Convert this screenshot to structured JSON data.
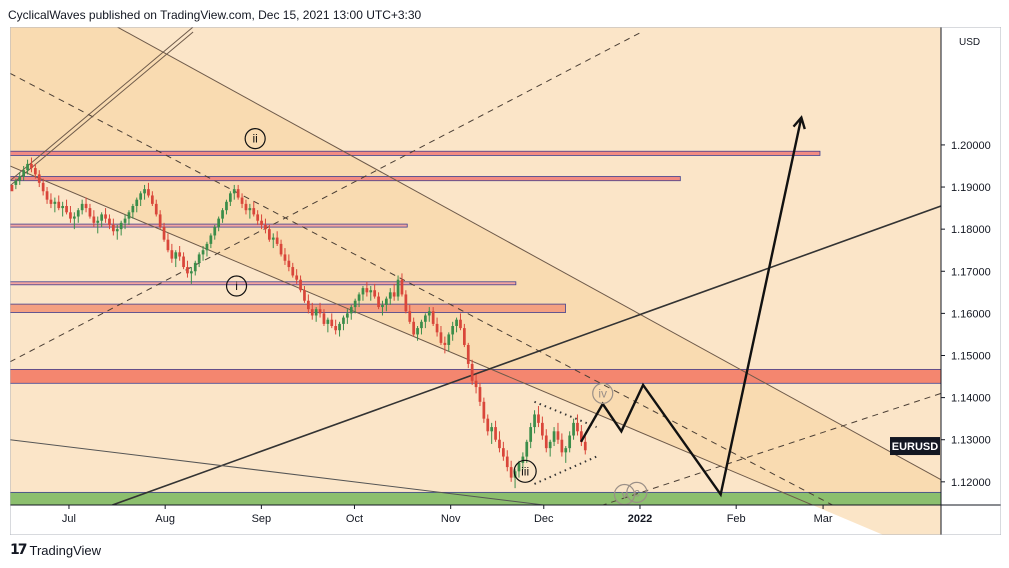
{
  "header": {
    "text": "CyclicalWaves published on TradingView.com, Dec 15, 2021 13:00 UTC+3:30"
  },
  "footer": {
    "logo": "17",
    "brand": "TradingView"
  },
  "chart_data": {
    "type": "candlestick",
    "symbol_badge": "EURUSD",
    "currency_label": "USD",
    "price_levels": [
      "1.20000",
      "1.19000",
      "1.18000",
      "1.17000",
      "1.16000",
      "1.15000",
      "1.14000",
      "1.13000",
      "1.12000"
    ],
    "y_values": [
      1.2,
      1.19,
      1.18,
      1.17,
      1.16,
      1.15,
      1.14,
      1.13,
      1.12
    ],
    "ylim": [
      1.1145,
      1.228
    ],
    "time_ticks": [
      "Jul",
      "Aug",
      "Sep",
      "Oct",
      "Nov",
      "Dec",
      "2022",
      "Feb",
      "Mar"
    ],
    "x_dates": [
      "2021-07-01",
      "2021-08-01",
      "2021-09-01",
      "2021-10-01",
      "2021-11-01",
      "2021-12-01",
      "2022-01-01",
      "2022-02-01",
      "2022-03-01"
    ],
    "xlim": [
      "2021-06-12",
      "2022-04-08"
    ],
    "zones": [
      {
        "name": "resistance-1.198",
        "from": "2021-06-12",
        "to": "2022-02-28",
        "low": 1.1975,
        "high": 1.1985,
        "color": "#f28b82"
      },
      {
        "name": "resistance-1.192",
        "from": "2021-06-12",
        "to": "2022-01-14",
        "low": 1.1915,
        "high": 1.1925,
        "color": "#f28b82"
      },
      {
        "name": "level-1.181",
        "from": "2021-06-12",
        "to": "2021-10-18",
        "low": 1.1807,
        "high": 1.1812,
        "color": "#f4a6a0"
      },
      {
        "name": "level-1.167",
        "from": "2021-06-12",
        "to": "2021-11-22",
        "low": 1.1668,
        "high": 1.1675,
        "color": "#f4a6a0"
      },
      {
        "name": "zone-1.161",
        "from": "2021-06-12",
        "to": "2021-12-08",
        "low": 1.1602,
        "high": 1.1622,
        "color": "#f4a081"
      },
      {
        "name": "zone-1.145",
        "from": "2021-06-12",
        "to": "2022-04-08",
        "low": 1.1434,
        "high": 1.1467,
        "color": "#f4866f"
      },
      {
        "name": "support-1.117",
        "from": "2021-06-12",
        "to": "2022-04-08",
        "low": 1.1145,
        "high": 1.1175,
        "color": "#8cbf6e"
      }
    ],
    "candles": [
      [
        1.1905,
        1.1905,
        1.19,
        1.189
      ],
      [
        1.1905,
        1.192,
        1.1895,
        1.1915
      ],
      [
        1.1915,
        1.1935,
        1.1905,
        1.1925
      ],
      [
        1.1925,
        1.195,
        1.1915,
        1.194
      ],
      [
        1.194,
        1.1965,
        1.193,
        1.1955
      ],
      [
        1.1955,
        1.197,
        1.1935,
        1.1945
      ],
      [
        1.1945,
        1.1955,
        1.192,
        1.193
      ],
      [
        1.193,
        1.194,
        1.19,
        1.191
      ],
      [
        1.191,
        1.192,
        1.188,
        1.189
      ],
      [
        1.189,
        1.19,
        1.186,
        1.187
      ],
      [
        1.187,
        1.1885,
        1.185,
        1.186
      ],
      [
        1.186,
        1.1875,
        1.184,
        1.1865
      ],
      [
        1.1865,
        1.188,
        1.1845,
        1.185
      ],
      [
        1.185,
        1.1865,
        1.183,
        1.1855
      ],
      [
        1.1855,
        1.187,
        1.1835,
        1.184
      ],
      [
        1.184,
        1.1855,
        1.1815,
        1.1825
      ],
      [
        1.1825,
        1.184,
        1.18,
        1.183
      ],
      [
        1.183,
        1.185,
        1.1815,
        1.1845
      ],
      [
        1.1845,
        1.187,
        1.1835,
        1.186
      ],
      [
        1.186,
        1.1875,
        1.184,
        1.185
      ],
      [
        1.185,
        1.186,
        1.1825,
        1.183
      ],
      [
        1.183,
        1.1845,
        1.1805,
        1.1815
      ],
      [
        1.1815,
        1.183,
        1.179,
        1.182
      ],
      [
        1.182,
        1.184,
        1.1805,
        1.1835
      ],
      [
        1.1835,
        1.185,
        1.1815,
        1.1825
      ],
      [
        1.1825,
        1.1835,
        1.18,
        1.181
      ],
      [
        1.181,
        1.1825,
        1.1785,
        1.1795
      ],
      [
        1.1795,
        1.181,
        1.1775,
        1.18
      ],
      [
        1.18,
        1.182,
        1.1785,
        1.1815
      ],
      [
        1.1815,
        1.1835,
        1.18,
        1.1825
      ],
      [
        1.1825,
        1.1845,
        1.181,
        1.184
      ],
      [
        1.184,
        1.186,
        1.1825,
        1.1855
      ],
      [
        1.1855,
        1.1875,
        1.184,
        1.187
      ],
      [
        1.187,
        1.189,
        1.1855,
        1.1885
      ],
      [
        1.1885,
        1.1905,
        1.187,
        1.1895
      ],
      [
        1.1895,
        1.191,
        1.1875,
        1.188
      ],
      [
        1.188,
        1.189,
        1.1855,
        1.186
      ],
      [
        1.186,
        1.187,
        1.183,
        1.1835
      ],
      [
        1.1835,
        1.1845,
        1.18,
        1.1805
      ],
      [
        1.1805,
        1.1815,
        1.177,
        1.1775
      ],
      [
        1.1775,
        1.179,
        1.1745,
        1.175
      ],
      [
        1.175,
        1.1765,
        1.172,
        1.173
      ],
      [
        1.173,
        1.175,
        1.171,
        1.1745
      ],
      [
        1.1745,
        1.176,
        1.1725,
        1.1735
      ],
      [
        1.1735,
        1.1745,
        1.1705,
        1.171
      ],
      [
        1.171,
        1.1725,
        1.1685,
        1.1695
      ],
      [
        1.1695,
        1.171,
        1.167,
        1.17
      ],
      [
        1.17,
        1.1725,
        1.169,
        1.172
      ],
      [
        1.172,
        1.1745,
        1.171,
        1.174
      ],
      [
        1.174,
        1.176,
        1.1725,
        1.175
      ],
      [
        1.175,
        1.177,
        1.1735,
        1.1765
      ],
      [
        1.1765,
        1.179,
        1.1755,
        1.1785
      ],
      [
        1.1785,
        1.181,
        1.1775,
        1.1805
      ],
      [
        1.1805,
        1.183,
        1.1795,
        1.1825
      ],
      [
        1.1825,
        1.185,
        1.1815,
        1.1845
      ],
      [
        1.1845,
        1.187,
        1.1835,
        1.1865
      ],
      [
        1.1865,
        1.189,
        1.1855,
        1.1885
      ],
      [
        1.1885,
        1.1905,
        1.187,
        1.1895
      ],
      [
        1.1895,
        1.1905,
        1.187,
        1.1875
      ],
      [
        1.1875,
        1.1885,
        1.185,
        1.186
      ],
      [
        1.186,
        1.187,
        1.1835,
        1.1845
      ],
      [
        1.1845,
        1.186,
        1.1825,
        1.185
      ],
      [
        1.185,
        1.1865,
        1.183,
        1.1835
      ],
      [
        1.1835,
        1.1845,
        1.181,
        1.182
      ],
      [
        1.182,
        1.1835,
        1.18,
        1.181
      ],
      [
        1.181,
        1.1825,
        1.179,
        1.18
      ],
      [
        1.18,
        1.181,
        1.177,
        1.1775
      ],
      [
        1.1775,
        1.179,
        1.1755,
        1.178
      ],
      [
        1.178,
        1.1795,
        1.176,
        1.1765
      ],
      [
        1.1765,
        1.1775,
        1.1735,
        1.174
      ],
      [
        1.174,
        1.1755,
        1.1715,
        1.1725
      ],
      [
        1.1725,
        1.174,
        1.17,
        1.171
      ],
      [
        1.171,
        1.172,
        1.1685,
        1.169
      ],
      [
        1.169,
        1.1705,
        1.167,
        1.168
      ],
      [
        1.168,
        1.169,
        1.165,
        1.1655
      ],
      [
        1.1655,
        1.1665,
        1.1625,
        1.163
      ],
      [
        1.163,
        1.1645,
        1.16,
        1.161
      ],
      [
        1.161,
        1.1625,
        1.1585,
        1.1595
      ],
      [
        1.1595,
        1.1615,
        1.158,
        1.161
      ],
      [
        1.161,
        1.1625,
        1.159,
        1.16
      ],
      [
        1.16,
        1.161,
        1.157,
        1.1575
      ],
      [
        1.1575,
        1.159,
        1.1555,
        1.1585
      ],
      [
        1.1585,
        1.16,
        1.1565,
        1.157
      ],
      [
        1.157,
        1.1585,
        1.155,
        1.156
      ],
      [
        1.156,
        1.158,
        1.1545,
        1.1575
      ],
      [
        1.1575,
        1.1595,
        1.156,
        1.159
      ],
      [
        1.159,
        1.161,
        1.1575,
        1.16
      ],
      [
        1.16,
        1.162,
        1.1585,
        1.1615
      ],
      [
        1.1615,
        1.1635,
        1.16,
        1.163
      ],
      [
        1.163,
        1.165,
        1.1615,
        1.1645
      ],
      [
        1.1645,
        1.1665,
        1.163,
        1.166
      ],
      [
        1.166,
        1.1675,
        1.164,
        1.165
      ],
      [
        1.165,
        1.1665,
        1.163,
        1.1655
      ],
      [
        1.1655,
        1.167,
        1.1635,
        1.164
      ],
      [
        1.164,
        1.165,
        1.161,
        1.1615
      ],
      [
        1.1615,
        1.163,
        1.1595,
        1.162
      ],
      [
        1.162,
        1.164,
        1.1605,
        1.1635
      ],
      [
        1.1635,
        1.166,
        1.162,
        1.165
      ],
      [
        1.165,
        1.167,
        1.163,
        1.164
      ],
      [
        1.164,
        1.169,
        1.163,
        1.168
      ],
      [
        1.168,
        1.1695,
        1.164,
        1.1645
      ],
      [
        1.1645,
        1.1655,
        1.16,
        1.1605
      ],
      [
        1.1605,
        1.162,
        1.1575,
        1.158
      ],
      [
        1.158,
        1.159,
        1.1545,
        1.155
      ],
      [
        1.155,
        1.157,
        1.1535,
        1.1565
      ],
      [
        1.1565,
        1.1585,
        1.155,
        1.158
      ],
      [
        1.158,
        1.16,
        1.1565,
        1.1595
      ],
      [
        1.1595,
        1.1615,
        1.158,
        1.1605
      ],
      [
        1.1605,
        1.1615,
        1.157,
        1.1575
      ],
      [
        1.1575,
        1.159,
        1.1545,
        1.1555
      ],
      [
        1.1555,
        1.157,
        1.1525,
        1.153
      ],
      [
        1.153,
        1.1545,
        1.1505,
        1.1525
      ],
      [
        1.1525,
        1.1555,
        1.151,
        1.155
      ],
      [
        1.155,
        1.158,
        1.1535,
        1.157
      ],
      [
        1.157,
        1.159,
        1.1555,
        1.1585
      ],
      [
        1.1585,
        1.16,
        1.156,
        1.1565
      ],
      [
        1.1565,
        1.1575,
        1.152,
        1.1525
      ],
      [
        1.1525,
        1.153,
        1.147,
        1.148
      ],
      [
        1.148,
        1.149,
        1.143,
        1.144
      ],
      [
        1.144,
        1.1455,
        1.141,
        1.1425
      ],
      [
        1.1425,
        1.1435,
        1.138,
        1.139
      ],
      [
        1.139,
        1.14,
        1.134,
        1.135
      ],
      [
        1.135,
        1.136,
        1.131,
        1.132
      ],
      [
        1.132,
        1.134,
        1.129,
        1.133
      ],
      [
        1.133,
        1.1345,
        1.1295,
        1.13
      ],
      [
        1.13,
        1.132,
        1.127,
        1.128
      ],
      [
        1.128,
        1.1295,
        1.125,
        1.126
      ],
      [
        1.126,
        1.1275,
        1.1225,
        1.1235
      ],
      [
        1.1235,
        1.125,
        1.12,
        1.121
      ],
      [
        1.121,
        1.123,
        1.1185,
        1.1225
      ],
      [
        1.1225,
        1.125,
        1.121,
        1.1245
      ],
      [
        1.1245,
        1.127,
        1.123,
        1.126
      ],
      [
        1.126,
        1.13,
        1.1245,
        1.1295
      ],
      [
        1.1295,
        1.134,
        1.128,
        1.133
      ],
      [
        1.133,
        1.137,
        1.1315,
        1.136
      ],
      [
        1.136,
        1.138,
        1.133,
        1.134
      ],
      [
        1.134,
        1.1355,
        1.13,
        1.131
      ],
      [
        1.131,
        1.1325,
        1.127,
        1.128
      ],
      [
        1.128,
        1.13,
        1.126,
        1.1295
      ],
      [
        1.1295,
        1.133,
        1.1285,
        1.132
      ],
      [
        1.132,
        1.134,
        1.129,
        1.13
      ],
      [
        1.13,
        1.1315,
        1.126,
        1.127
      ],
      [
        1.127,
        1.1285,
        1.1245,
        1.128
      ],
      [
        1.128,
        1.132,
        1.127,
        1.131
      ],
      [
        1.131,
        1.135,
        1.13,
        1.134
      ],
      [
        1.134,
        1.136,
        1.131,
        1.132
      ],
      [
        1.132,
        1.1335,
        1.1285,
        1.1295
      ],
      [
        1.1295,
        1.131,
        1.1265,
        1.1275
      ]
    ],
    "channel_lines": [
      {
        "name": "upper-channel-line",
        "x1": "2021-06-12",
        "y1": 1.242,
        "x2": "2022-04-08",
        "y2": 1.1205,
        "style": "solid",
        "color": "#6e5a4a"
      },
      {
        "name": "lower-channel-line",
        "x1": "2021-06-12",
        "y1": 1.195,
        "x2": "2022-03-04",
        "y2": 1.1125,
        "style": "solid",
        "color": "#6e5a4a"
      },
      {
        "name": "mid-channel-line",
        "x1": "2021-06-12",
        "y1": 1.217,
        "x2": "2022-03-04",
        "y2": 1.1145,
        "style": "dashed",
        "color": "#4b3f35"
      },
      {
        "name": "upper-dashed-trend",
        "x1": "2021-06-12",
        "y1": 1.1485,
        "x2": "2022-01-02",
        "y2": 1.227,
        "style": "dashed",
        "color": "#4b3f35"
      },
      {
        "name": "lower-dashed-trend",
        "x1": "2021-12-16",
        "y1": 1.1135,
        "x2": "2022-04-08",
        "y2": 1.141,
        "style": "dashed",
        "color": "#4b3f35"
      },
      {
        "name": "long-uptrend-line",
        "x1": "2021-07-15",
        "y1": 1.1145,
        "x2": "2022-04-08",
        "y2": 1.1855,
        "style": "solid",
        "color": "#333333"
      },
      {
        "name": "old-uptrend-line",
        "x1": "2021-06-12",
        "y1": 1.1915,
        "x2": "2021-08-10",
        "y2": 1.228,
        "style": "double",
        "color": "#6e5a4a"
      },
      {
        "name": "declining-support-line",
        "x1": "2021-06-12",
        "y1": 1.13,
        "x2": "2021-12-01",
        "y2": 1.1145,
        "style": "solid",
        "color": "#555555"
      },
      {
        "name": "wedge-upper",
        "x1": "2021-11-28",
        "y1": 1.139,
        "x2": "2021-12-18",
        "y2": 1.133,
        "style": "dotted",
        "color": "#333333"
      },
      {
        "name": "wedge-lower",
        "x1": "2021-11-28",
        "y1": 1.1195,
        "x2": "2021-12-18",
        "y2": 1.126,
        "style": "dotted",
        "color": "#333333"
      }
    ],
    "projection_path": [
      [
        "2021-12-13",
        1.1295
      ],
      [
        "2021-12-20",
        1.1385
      ],
      [
        "2021-12-26",
        1.132
      ],
      [
        "2022-01-02",
        1.143
      ],
      [
        "2022-01-27",
        1.117
      ],
      [
        "2022-02-22",
        1.2065
      ]
    ],
    "wave_labels": [
      {
        "label": "ii",
        "x": "2021-08-30",
        "y": 1.2015,
        "style": "black"
      },
      {
        "label": "i",
        "x": "2021-08-24",
        "y": 1.1665,
        "style": "black"
      },
      {
        "label": "iii",
        "x": "2021-11-25",
        "y": 1.1225,
        "style": "black"
      },
      {
        "label": "iv",
        "x": "2021-12-20",
        "y": 1.141,
        "style": "gray"
      },
      {
        "label": "v",
        "x": "2021-12-27",
        "y": 1.117,
        "style": "gray"
      },
      {
        "label": "c",
        "x": "2021-12-31",
        "y": 1.1175,
        "style": "gray"
      }
    ]
  }
}
